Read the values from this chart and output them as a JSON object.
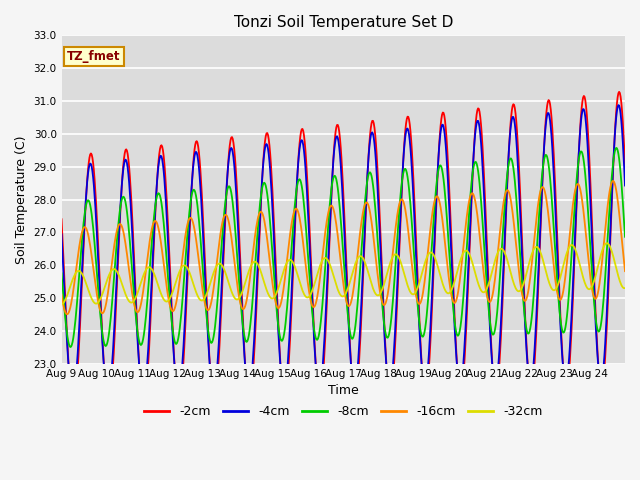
{
  "title": "Tonzi Soil Temperature Set D",
  "xlabel": "Time",
  "ylabel": "Soil Temperature (C)",
  "ylim": [
    23.0,
    33.0
  ],
  "yticks": [
    23.0,
    24.0,
    25.0,
    26.0,
    27.0,
    28.0,
    29.0,
    30.0,
    31.0,
    32.0,
    33.0
  ],
  "xtick_labels": [
    "Aug 9",
    "Aug 10",
    "Aug 11",
    "Aug 12",
    "Aug 13",
    "Aug 14",
    "Aug 15",
    "Aug 16",
    "Aug 17",
    "Aug 18",
    "Aug 19",
    "Aug 20",
    "Aug 21",
    "Aug 22",
    "Aug 23",
    "Aug 24"
  ],
  "legend_labels": [
    "-2cm",
    "-4cm",
    "-8cm",
    "-16cm",
    "-32cm"
  ],
  "line_colors": [
    "#ff0000",
    "#0000dd",
    "#00cc00",
    "#ff8800",
    "#dddd00"
  ],
  "annotation_text": "TZ_fmet",
  "annotation_bbox_facecolor": "#ffffcc",
  "annotation_bbox_edgecolor": "#cc8800",
  "plot_bg_color": "#dcdcdc",
  "fig_bg_color": "#f5f5f5",
  "grid_color": "#ffffff",
  "title_fontsize": 11,
  "tick_fontsize": 7.5,
  "label_fontsize": 9,
  "legend_fontsize": 9
}
